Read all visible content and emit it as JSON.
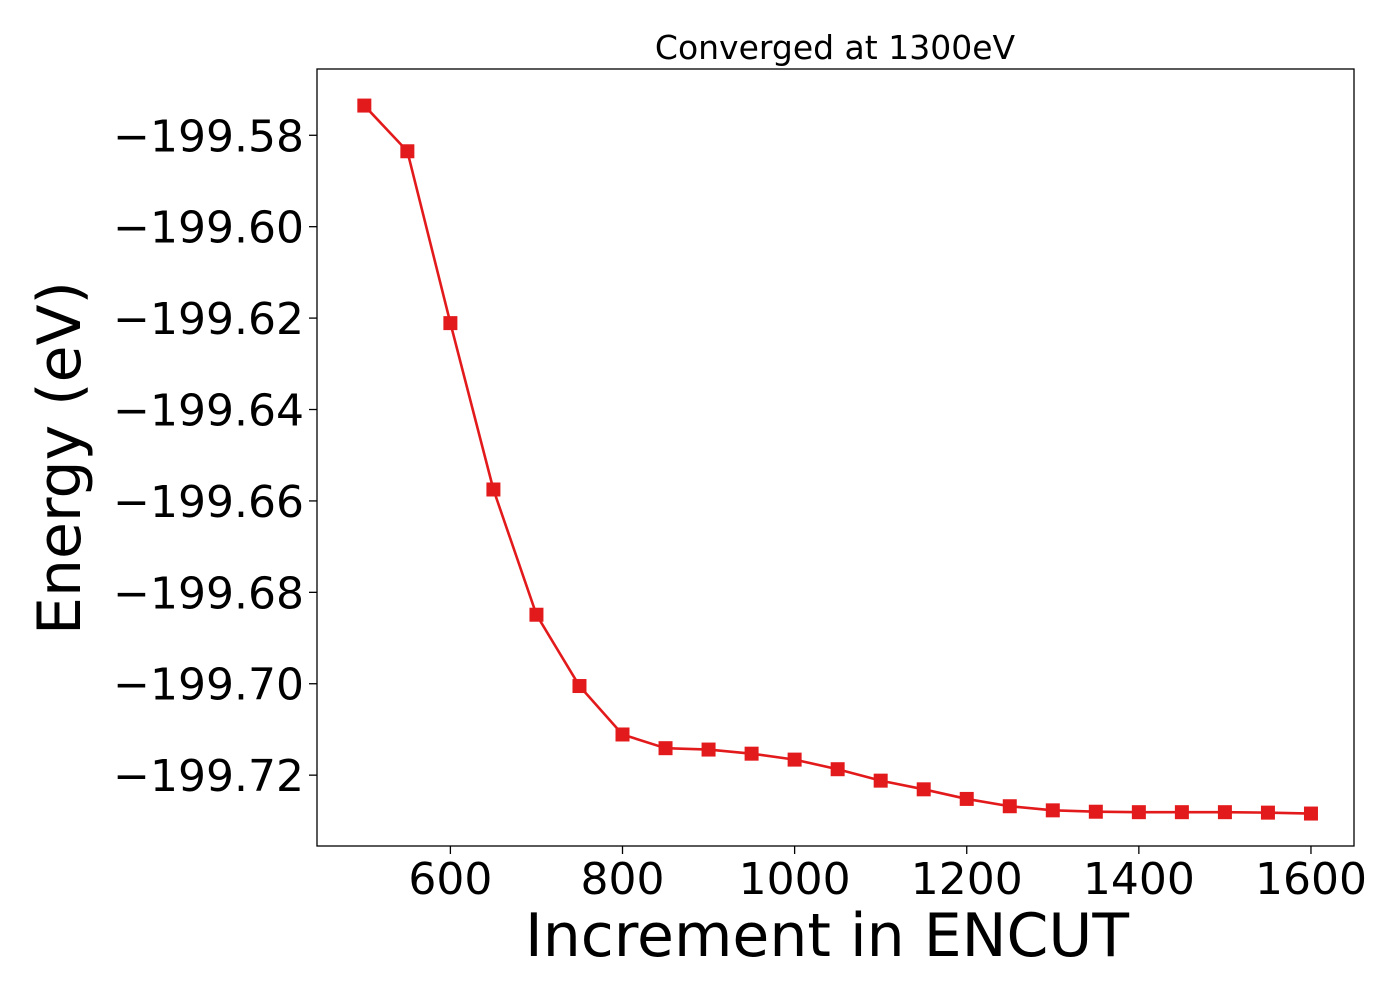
{
  "chart_data": {
    "type": "line",
    "title": "Converged at 1300eV",
    "xlabel": "Increment in ENCUT",
    "ylabel": "Energy (eV)",
    "xlim": [
      445,
      1650
    ],
    "ylim": [
      -199.7355,
      -199.5655
    ],
    "xticks": [
      600,
      800,
      1000,
      1200,
      1400,
      1600
    ],
    "xtick_labels": [
      "600",
      "800",
      "1000",
      "1200",
      "1400",
      "1600"
    ],
    "yticks": [
      -199.58,
      -199.6,
      -199.62,
      -199.64,
      -199.66,
      -199.68,
      -199.7,
      -199.72
    ],
    "ytick_labels": [
      "−199.58",
      "−199.60",
      "−199.62",
      "−199.64",
      "−199.66",
      "−199.68",
      "−199.70",
      "−199.72"
    ],
    "grid": false,
    "series": [
      {
        "color": "#e31a1c",
        "marker": "square",
        "x": [
          500,
          550,
          600,
          650,
          700,
          750,
          800,
          850,
          900,
          950,
          1000,
          1050,
          1100,
          1150,
          1200,
          1250,
          1300,
          1350,
          1400,
          1450,
          1500,
          1550,
          1600
        ],
        "y": [
          -199.5735,
          -199.5835,
          -199.6211,
          -199.6575,
          -199.6849,
          -199.7005,
          -199.7111,
          -199.7141,
          -199.7144,
          -199.7153,
          -199.7166,
          -199.7187,
          -199.7212,
          -199.7231,
          -199.7252,
          -199.7268,
          -199.7277,
          -199.728,
          -199.7281,
          -199.7281,
          -199.7281,
          -199.7282,
          -199.7284
        ]
      }
    ]
  }
}
